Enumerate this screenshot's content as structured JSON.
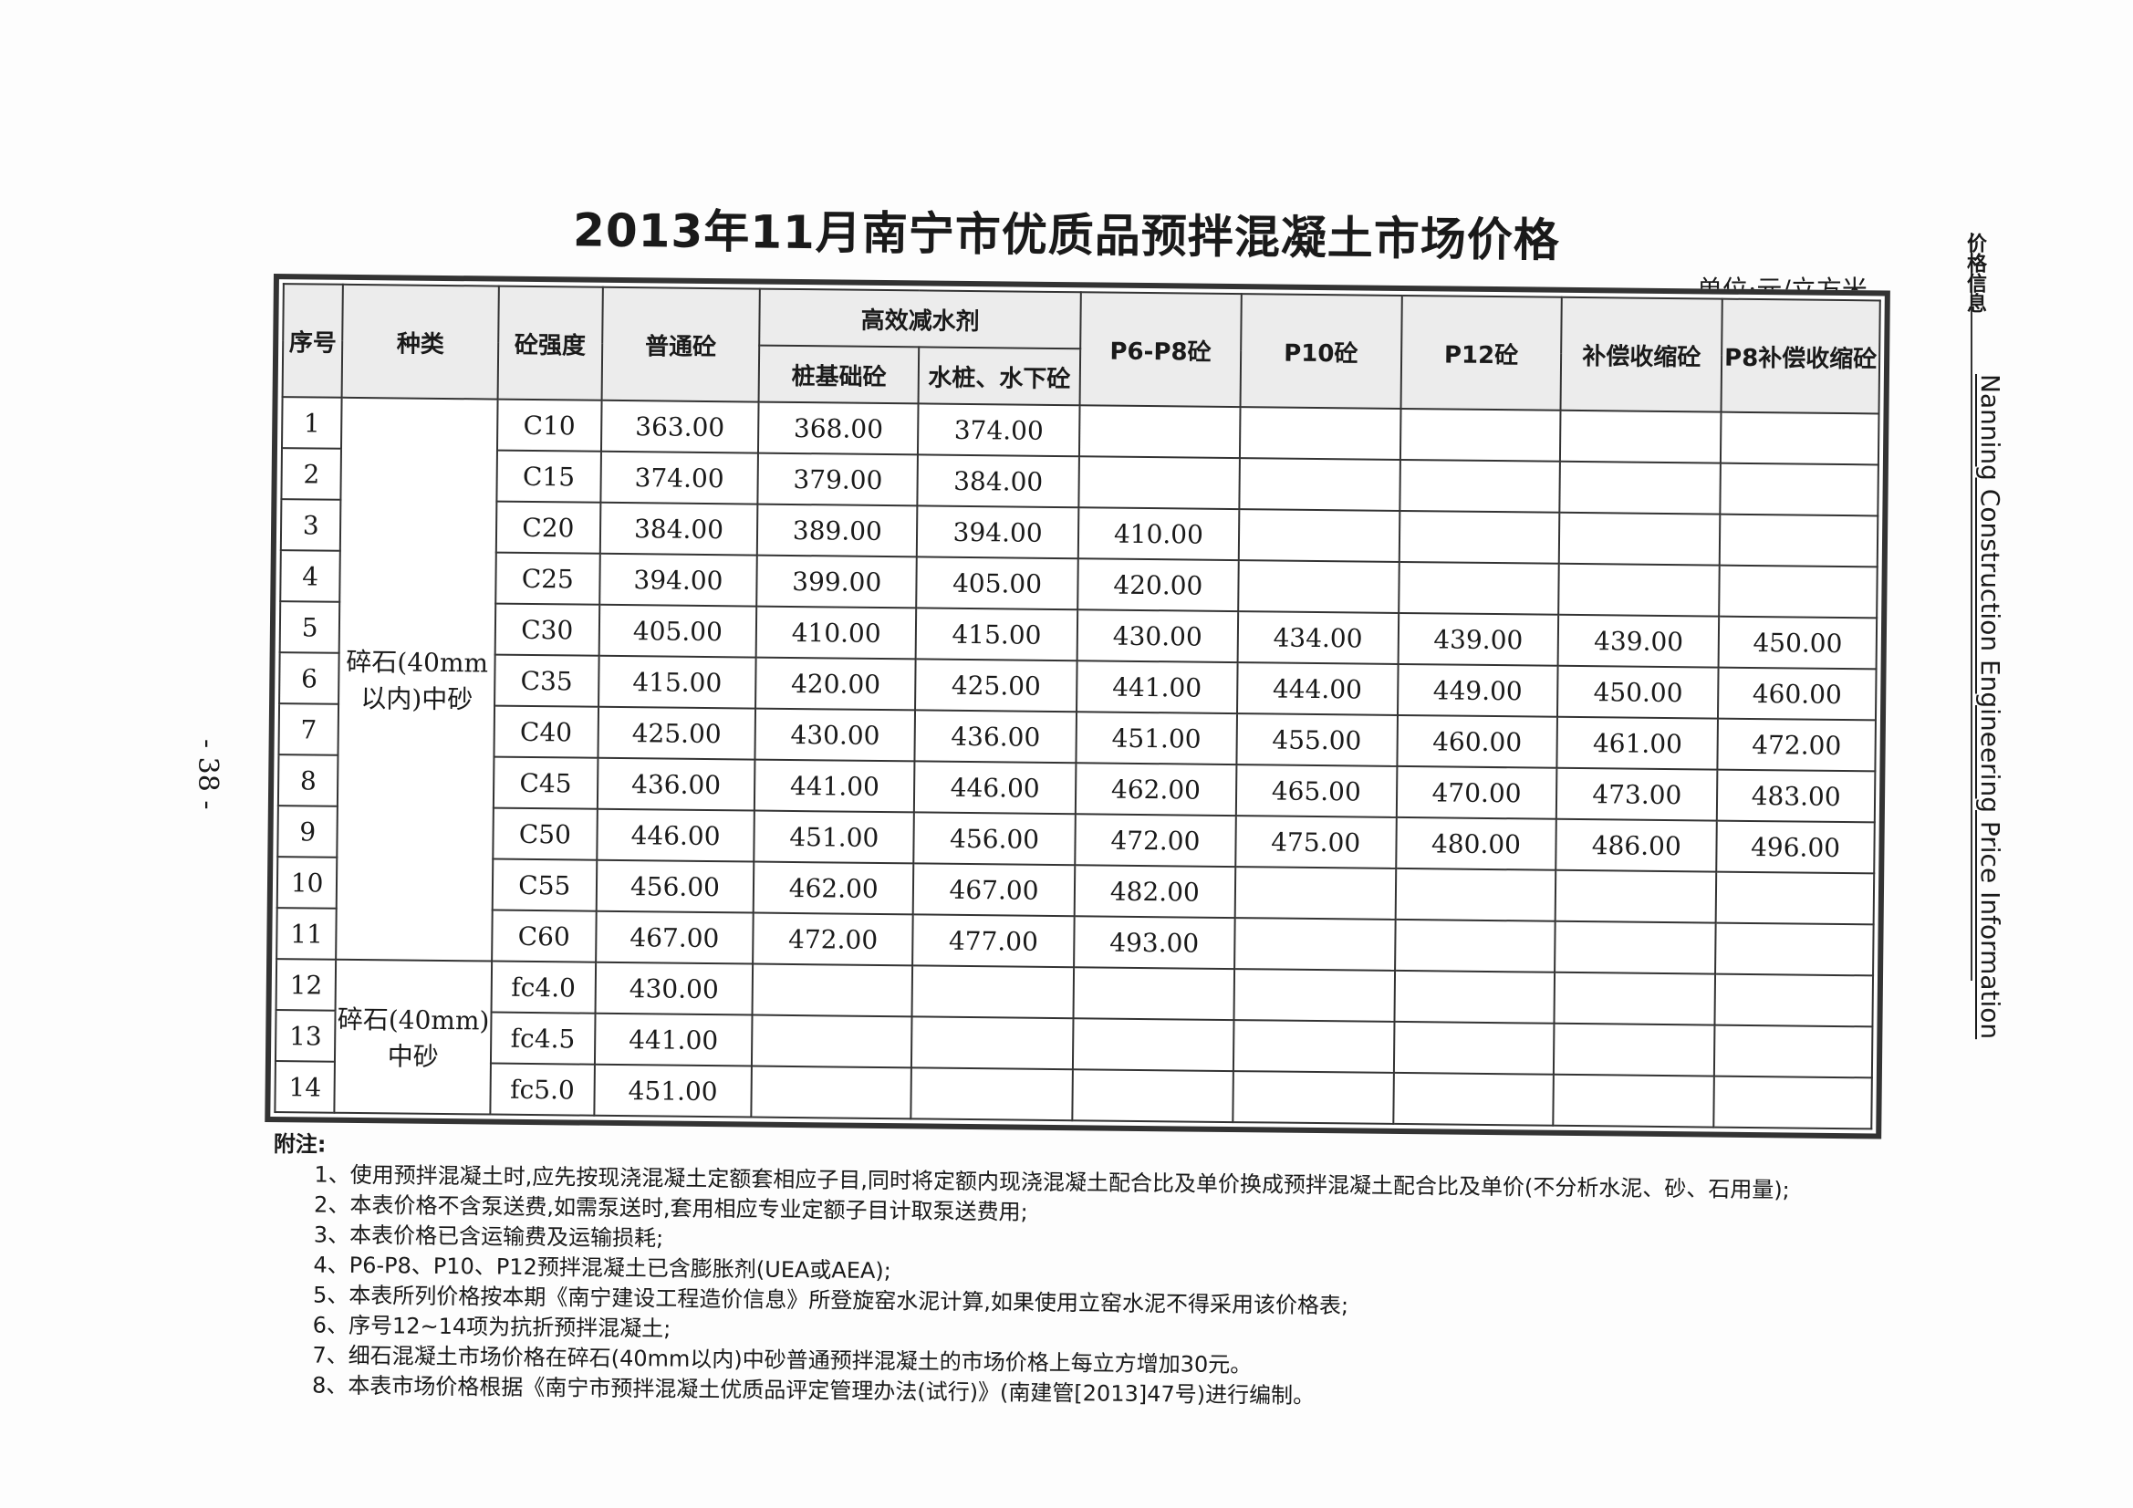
{
  "title": "2013年11月南宁市优质品预拌混凝土市场价格",
  "unit": "单位:元/立方米",
  "side_label": "价格信息",
  "side_label_en": "Nanning Construction Engineering Price Information",
  "page_number": "- 38 -",
  "table": {
    "headers": {
      "seq": "序号",
      "type": "种类",
      "grade": "砼强度",
      "normal": "普通砼",
      "group": "高效减水剂",
      "pile": "桩基础砼",
      "water": "水桩、水下砼",
      "p6p8": "P6-P8砼",
      "p10": "P10砼",
      "p12": "P12砼",
      "comp": "补偿收缩砼",
      "p8comp": "P8补偿收缩砼"
    },
    "group1_type": "碎石(40mm以内)中砂",
    "group2_type": "碎石(40mm)中砂",
    "rows": [
      [
        "1",
        "C10",
        "363.00",
        "368.00",
        "374.00",
        "",
        "",
        "",
        "",
        ""
      ],
      [
        "2",
        "C15",
        "374.00",
        "379.00",
        "384.00",
        "",
        "",
        "",
        "",
        ""
      ],
      [
        "3",
        "C20",
        "384.00",
        "389.00",
        "394.00",
        "410.00",
        "",
        "",
        "",
        ""
      ],
      [
        "4",
        "C25",
        "394.00",
        "399.00",
        "405.00",
        "420.00",
        "",
        "",
        "",
        ""
      ],
      [
        "5",
        "C30",
        "405.00",
        "410.00",
        "415.00",
        "430.00",
        "434.00",
        "439.00",
        "439.00",
        "450.00"
      ],
      [
        "6",
        "C35",
        "415.00",
        "420.00",
        "425.00",
        "441.00",
        "444.00",
        "449.00",
        "450.00",
        "460.00"
      ],
      [
        "7",
        "C40",
        "425.00",
        "430.00",
        "436.00",
        "451.00",
        "455.00",
        "460.00",
        "461.00",
        "472.00"
      ],
      [
        "8",
        "C45",
        "436.00",
        "441.00",
        "446.00",
        "462.00",
        "465.00",
        "470.00",
        "473.00",
        "483.00"
      ],
      [
        "9",
        "C50",
        "446.00",
        "451.00",
        "456.00",
        "472.00",
        "475.00",
        "480.00",
        "486.00",
        "496.00"
      ],
      [
        "10",
        "C55",
        "456.00",
        "462.00",
        "467.00",
        "482.00",
        "",
        "",
        "",
        ""
      ],
      [
        "11",
        "C60",
        "467.00",
        "472.00",
        "477.00",
        "493.00",
        "",
        "",
        "",
        ""
      ],
      [
        "12",
        "fc4.0",
        "430.00",
        "",
        "",
        "",
        "",
        "",
        "",
        ""
      ],
      [
        "13",
        "fc4.5",
        "441.00",
        "",
        "",
        "",
        "",
        "",
        "",
        ""
      ],
      [
        "14",
        "fc5.0",
        "451.00",
        "",
        "",
        "",
        "",
        "",
        "",
        ""
      ]
    ]
  },
  "notes": {
    "heading": "附注:",
    "items": [
      "1、使用预拌混凝土时,应先按现浇混凝土定额套相应子目,同时将定额内现浇混凝土配合比及单价换成预拌混凝土配合比及单价(不分析水泥、砂、石用量);",
      "2、本表价格不含泵送费,如需泵送时,套用相应专业定额子目计取泵送费用;",
      "3、本表价格已含运输费及运输损耗;",
      "4、P6-P8、P10、P12预拌混凝土已含膨胀剂(UEA或AEA);",
      "5、本表所列价格按本期《南宁建设工程造价信息》所登旋窑水泥计算,如果使用立窑水泥不得采用该价格表;",
      "6、序号12~14项为抗折预拌混凝土;",
      "7、细石混凝土市场价格在碎石(40mm以内)中砂普通预拌混凝土的市场价格上每立方增加30元。",
      "8、本表市场价格根据《南宁市预拌混凝土优质品评定管理办法(试行)》(南建管[2013]47号)进行编制。"
    ]
  }
}
